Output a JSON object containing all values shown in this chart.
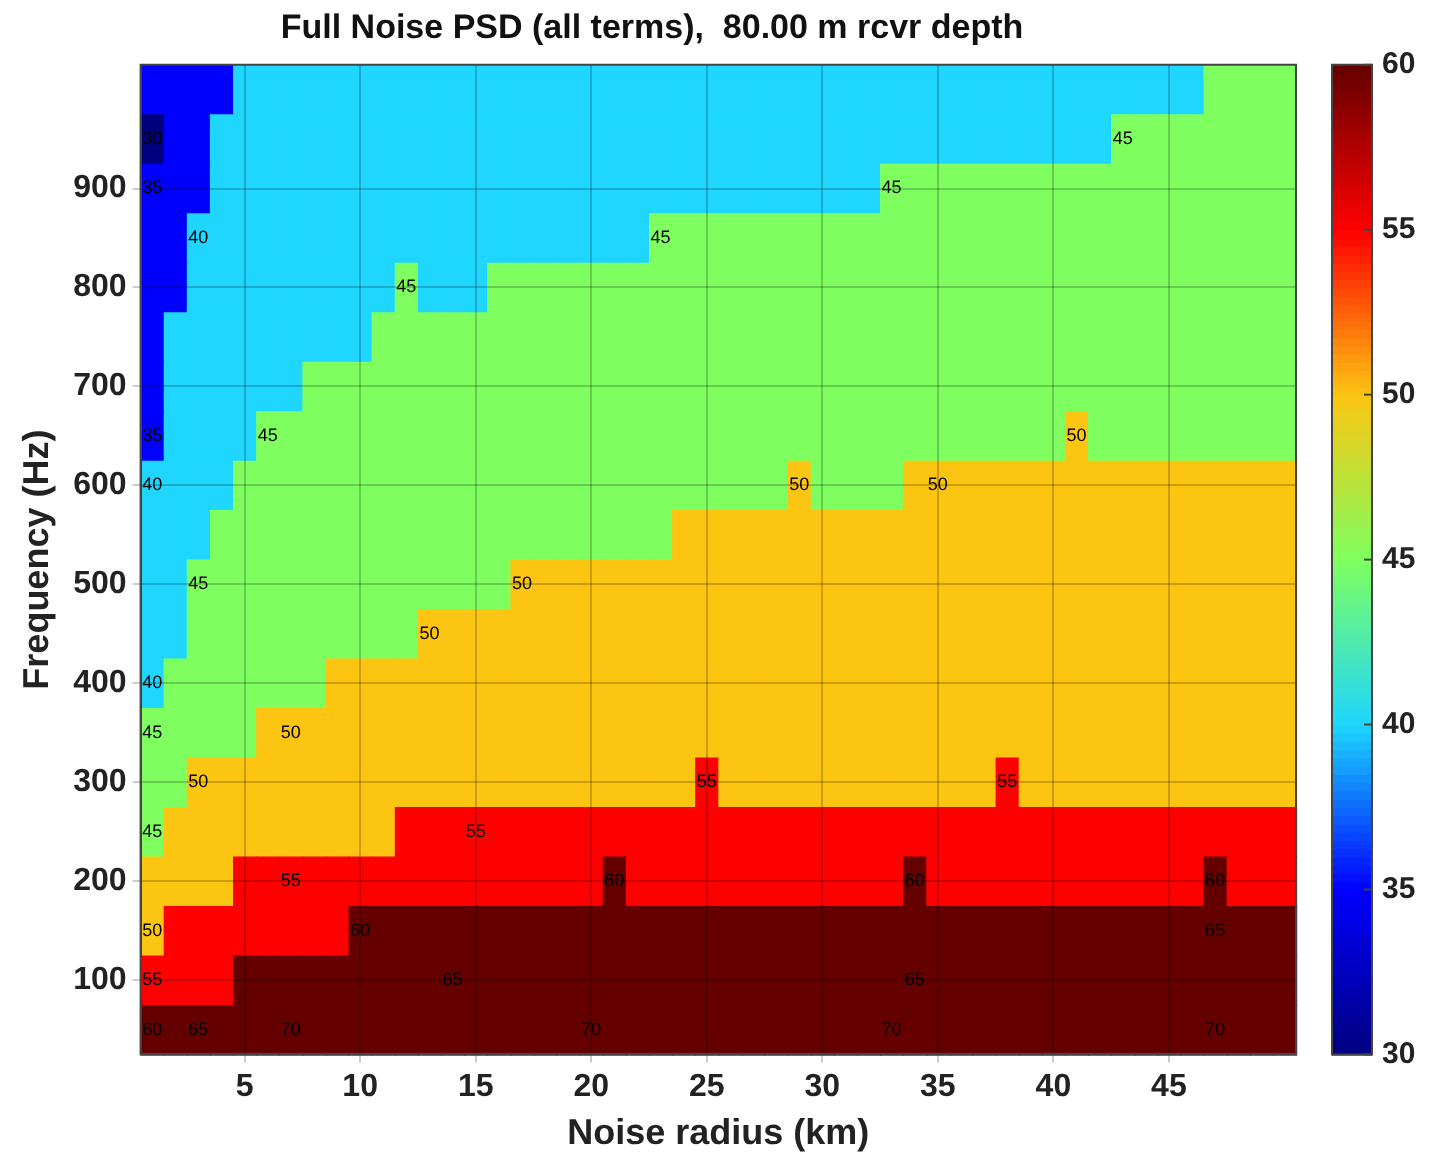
{
  "chart_data": {
    "type": "heatmap",
    "title": "Full Noise PSD (all terms),  80.00 m rcvr depth",
    "xlabel": "Noise radius (km)",
    "ylabel": "Frequency (Hz)",
    "categories": [
      null,
      null,
      null,
      null,
      "5",
      null,
      null,
      null,
      null,
      "10",
      null,
      null,
      null,
      null,
      "15",
      null,
      null,
      null,
      null,
      "20",
      null,
      null,
      null,
      null,
      "25",
      null,
      null,
      null,
      null,
      "30",
      null,
      null,
      null,
      null,
      "35",
      null,
      null,
      null,
      null,
      "40",
      null,
      null,
      null,
      null,
      "45",
      null,
      null,
      null,
      null,
      null
    ],
    "y_categories": [
      null,
      null,
      "900",
      null,
      "800",
      null,
      "700",
      null,
      "600",
      null,
      "500",
      null,
      "400",
      null,
      "300",
      null,
      "200",
      null,
      "100",
      null
    ],
    "clim": [
      30,
      60
    ],
    "cticks": [
      30,
      35,
      40,
      45,
      50,
      55,
      60
    ],
    "grid": true,
    "cells": [
      [
        35,
        35,
        35,
        35,
        40,
        40,
        40,
        40,
        40,
        40,
        40,
        40,
        40,
        40,
        40,
        40,
        40,
        40,
        40,
        40,
        40,
        40,
        40,
        40,
        40,
        40,
        40,
        40,
        40,
        40,
        40,
        40,
        40,
        40,
        40,
        40,
        40,
        40,
        40,
        40,
        40,
        40,
        40,
        40,
        40,
        40,
        45,
        45,
        45,
        45
      ],
      [
        30,
        35,
        35,
        40,
        40,
        40,
        40,
        40,
        40,
        40,
        40,
        40,
        40,
        40,
        40,
        40,
        40,
        40,
        40,
        40,
        40,
        40,
        40,
        40,
        40,
        40,
        40,
        40,
        40,
        40,
        40,
        40,
        40,
        40,
        40,
        40,
        40,
        40,
        40,
        40,
        40,
        40,
        45,
        45,
        45,
        45,
        45,
        45,
        45,
        45
      ],
      [
        35,
        35,
        35,
        40,
        40,
        40,
        40,
        40,
        40,
        40,
        40,
        40,
        40,
        40,
        40,
        40,
        40,
        40,
        40,
        40,
        40,
        40,
        40,
        40,
        40,
        40,
        40,
        40,
        40,
        40,
        40,
        40,
        45,
        45,
        45,
        45,
        45,
        45,
        45,
        45,
        45,
        45,
        45,
        45,
        45,
        45,
        45,
        45,
        45,
        45
      ],
      [
        35,
        35,
        40,
        40,
        40,
        40,
        40,
        40,
        40,
        40,
        40,
        40,
        40,
        40,
        40,
        40,
        40,
        40,
        40,
        40,
        40,
        40,
        45,
        45,
        45,
        45,
        45,
        45,
        45,
        45,
        45,
        45,
        45,
        45,
        45,
        45,
        45,
        45,
        45,
        45,
        45,
        45,
        45,
        45,
        45,
        45,
        45,
        45,
        45,
        45
      ],
      [
        35,
        35,
        40,
        40,
        40,
        40,
        40,
        40,
        40,
        40,
        40,
        45,
        40,
        40,
        40,
        45,
        45,
        45,
        45,
        45,
        45,
        45,
        45,
        45,
        45,
        45,
        45,
        45,
        45,
        45,
        45,
        45,
        45,
        45,
        45,
        45,
        45,
        45,
        45,
        45,
        45,
        45,
        45,
        45,
        45,
        45,
        45,
        45,
        45,
        45
      ],
      [
        35,
        40,
        40,
        40,
        40,
        40,
        40,
        40,
        40,
        40,
        45,
        45,
        45,
        45,
        45,
        45,
        45,
        45,
        45,
        45,
        45,
        45,
        45,
        45,
        45,
        45,
        45,
        45,
        45,
        45,
        45,
        45,
        45,
        45,
        45,
        45,
        45,
        45,
        45,
        45,
        45,
        45,
        45,
        45,
        45,
        45,
        45,
        45,
        45,
        45
      ],
      [
        35,
        40,
        40,
        40,
        40,
        40,
        40,
        45,
        45,
        45,
        45,
        45,
        45,
        45,
        45,
        45,
        45,
        45,
        45,
        45,
        45,
        45,
        45,
        45,
        45,
        45,
        45,
        45,
        45,
        45,
        45,
        45,
        45,
        45,
        45,
        45,
        45,
        45,
        45,
        45,
        45,
        45,
        45,
        45,
        45,
        45,
        45,
        45,
        45,
        45
      ],
      [
        35,
        40,
        40,
        40,
        40,
        45,
        45,
        45,
        45,
        45,
        45,
        45,
        45,
        45,
        45,
        45,
        45,
        45,
        45,
        45,
        45,
        45,
        45,
        45,
        45,
        45,
        45,
        45,
        45,
        45,
        45,
        45,
        45,
        45,
        45,
        45,
        45,
        45,
        45,
        45,
        50,
        45,
        45,
        45,
        45,
        45,
        45,
        45,
        45,
        45
      ],
      [
        40,
        40,
        40,
        40,
        45,
        45,
        45,
        45,
        45,
        45,
        45,
        45,
        45,
        45,
        45,
        45,
        45,
        45,
        45,
        45,
        45,
        45,
        45,
        45,
        45,
        45,
        45,
        45,
        50,
        45,
        45,
        45,
        45,
        50,
        50,
        50,
        50,
        50,
        50,
        50,
        50,
        50,
        50,
        50,
        50,
        50,
        50,
        50,
        50,
        50
      ],
      [
        40,
        40,
        40,
        45,
        45,
        45,
        45,
        45,
        45,
        45,
        45,
        45,
        45,
        45,
        45,
        45,
        45,
        45,
        45,
        45,
        45,
        45,
        45,
        50,
        50,
        50,
        50,
        50,
        50,
        50,
        50,
        50,
        50,
        50,
        50,
        50,
        50,
        50,
        50,
        50,
        50,
        50,
        50,
        50,
        50,
        50,
        50,
        50,
        50,
        50
      ],
      [
        40,
        40,
        45,
        45,
        45,
        45,
        45,
        45,
        45,
        45,
        45,
        45,
        45,
        45,
        45,
        45,
        50,
        50,
        50,
        50,
        50,
        50,
        50,
        50,
        50,
        50,
        50,
        50,
        50,
        50,
        50,
        50,
        50,
        50,
        50,
        50,
        50,
        50,
        50,
        50,
        50,
        50,
        50,
        50,
        50,
        50,
        50,
        50,
        50,
        50
      ],
      [
        40,
        40,
        45,
        45,
        45,
        45,
        45,
        45,
        45,
        45,
        45,
        45,
        50,
        50,
        50,
        50,
        50,
        50,
        50,
        50,
        50,
        50,
        50,
        50,
        50,
        50,
        50,
        50,
        50,
        50,
        50,
        50,
        50,
        50,
        50,
        50,
        50,
        50,
        50,
        50,
        50,
        50,
        50,
        50,
        50,
        50,
        50,
        50,
        50,
        50
      ],
      [
        40,
        45,
        45,
        45,
        45,
        45,
        45,
        45,
        50,
        50,
        50,
        50,
        50,
        50,
        50,
        50,
        50,
        50,
        50,
        50,
        50,
        50,
        50,
        50,
        50,
        50,
        50,
        50,
        50,
        50,
        50,
        50,
        50,
        50,
        50,
        50,
        50,
        50,
        50,
        50,
        50,
        50,
        50,
        50,
        50,
        50,
        50,
        50,
        50,
        50
      ],
      [
        45,
        45,
        45,
        45,
        45,
        50,
        50,
        50,
        50,
        50,
        50,
        50,
        50,
        50,
        50,
        50,
        50,
        50,
        50,
        50,
        50,
        50,
        50,
        50,
        50,
        50,
        50,
        50,
        50,
        50,
        50,
        50,
        50,
        50,
        50,
        50,
        50,
        50,
        50,
        50,
        50,
        50,
        50,
        50,
        50,
        50,
        50,
        50,
        50,
        50
      ],
      [
        45,
        45,
        50,
        50,
        50,
        50,
        50,
        50,
        50,
        50,
        50,
        50,
        50,
        50,
        50,
        50,
        50,
        50,
        50,
        50,
        50,
        50,
        50,
        50,
        55,
        50,
        50,
        50,
        50,
        50,
        50,
        50,
        50,
        50,
        50,
        50,
        50,
        55,
        50,
        50,
        50,
        50,
        50,
        50,
        50,
        50,
        50,
        50,
        50,
        50
      ],
      [
        45,
        50,
        50,
        50,
        50,
        50,
        50,
        50,
        50,
        50,
        50,
        55,
        55,
        55,
        55,
        55,
        55,
        55,
        55,
        55,
        55,
        55,
        55,
        55,
        55,
        55,
        55,
        55,
        55,
        55,
        55,
        55,
        55,
        55,
        55,
        55,
        55,
        55,
        55,
        55,
        55,
        55,
        55,
        55,
        55,
        55,
        55,
        55,
        55,
        55
      ],
      [
        50,
        50,
        50,
        50,
        55,
        55,
        55,
        55,
        55,
        55,
        55,
        55,
        55,
        55,
        55,
        55,
        55,
        55,
        55,
        55,
        60,
        55,
        55,
        55,
        55,
        55,
        55,
        55,
        55,
        55,
        55,
        55,
        55,
        60,
        55,
        55,
        55,
        55,
        55,
        55,
        55,
        55,
        55,
        55,
        55,
        55,
        60,
        55,
        55,
        55
      ],
      [
        50,
        55,
        55,
        55,
        55,
        55,
        55,
        55,
        55,
        60,
        60,
        60,
        60,
        60,
        60,
        60,
        60,
        60,
        60,
        60,
        60,
        60,
        60,
        60,
        60,
        60,
        60,
        60,
        60,
        60,
        60,
        60,
        60,
        60,
        60,
        60,
        60,
        60,
        60,
        60,
        60,
        60,
        60,
        60,
        60,
        60,
        65,
        60,
        60,
        60
      ],
      [
        55,
        55,
        55,
        55,
        60,
        60,
        60,
        60,
        60,
        60,
        60,
        60,
        60,
        65,
        60,
        60,
        60,
        60,
        60,
        60,
        60,
        60,
        60,
        60,
        60,
        60,
        60,
        60,
        60,
        60,
        60,
        60,
        60,
        65,
        60,
        60,
        60,
        60,
        60,
        60,
        60,
        60,
        60,
        60,
        60,
        60,
        60,
        60,
        60,
        60
      ],
      [
        60,
        60,
        65,
        60,
        60,
        60,
        70,
        60,
        60,
        60,
        60,
        60,
        60,
        60,
        60,
        60,
        60,
        60,
        60,
        70,
        60,
        60,
        60,
        60,
        60,
        60,
        60,
        60,
        60,
        60,
        60,
        60,
        70,
        60,
        60,
        60,
        60,
        60,
        60,
        60,
        60,
        60,
        60,
        60,
        60,
        60,
        70,
        60,
        60,
        60
      ]
    ],
    "cell_labels": [
      [
        null,
        null,
        null,
        null,
        null,
        null,
        null,
        null,
        null,
        null,
        null,
        null,
        null,
        null,
        null,
        null,
        null,
        null,
        null,
        null,
        null,
        null,
        null,
        null,
        null,
        null,
        null,
        null,
        null,
        null,
        null,
        null,
        null,
        null,
        null,
        null,
        null,
        null,
        null,
        null,
        null,
        null,
        null,
        null,
        null,
        null,
        null,
        null,
        null,
        null
      ],
      [
        "30",
        null,
        null,
        null,
        null,
        null,
        null,
        null,
        null,
        null,
        null,
        null,
        null,
        null,
        null,
        null,
        null,
        null,
        null,
        null,
        null,
        null,
        null,
        null,
        null,
        null,
        null,
        null,
        null,
        null,
        null,
        null,
        null,
        null,
        null,
        null,
        null,
        null,
        null,
        null,
        null,
        null,
        "45",
        null,
        null,
        null,
        null,
        null,
        null,
        null
      ],
      [
        "35",
        null,
        null,
        null,
        null,
        null,
        null,
        null,
        null,
        null,
        null,
        null,
        null,
        null,
        null,
        null,
        null,
        null,
        null,
        null,
        null,
        null,
        null,
        null,
        null,
        null,
        null,
        null,
        null,
        null,
        null,
        null,
        "45",
        null,
        null,
        null,
        null,
        null,
        null,
        null,
        null,
        null,
        null,
        null,
        null,
        null,
        null,
        null,
        null,
        null
      ],
      [
        null,
        null,
        "40",
        null,
        null,
        null,
        null,
        null,
        null,
        null,
        null,
        null,
        null,
        null,
        null,
        null,
        null,
        null,
        null,
        null,
        null,
        null,
        "45",
        null,
        null,
        null,
        null,
        null,
        null,
        null,
        null,
        null,
        null,
        null,
        null,
        null,
        null,
        null,
        null,
        null,
        null,
        null,
        null,
        null,
        null,
        null,
        null,
        null,
        null,
        null
      ],
      [
        null,
        null,
        null,
        null,
        null,
        null,
        null,
        null,
        null,
        null,
        null,
        "45",
        null,
        null,
        null,
        null,
        null,
        null,
        null,
        null,
        null,
        null,
        null,
        null,
        null,
        null,
        null,
        null,
        null,
        null,
        null,
        null,
        null,
        null,
        null,
        null,
        null,
        null,
        null,
        null,
        null,
        null,
        null,
        null,
        null,
        null,
        null,
        null,
        null,
        null
      ],
      [
        null,
        null,
        null,
        null,
        null,
        null,
        null,
        null,
        null,
        null,
        null,
        null,
        null,
        null,
        null,
        null,
        null,
        null,
        null,
        null,
        null,
        null,
        null,
        null,
        null,
        null,
        null,
        null,
        null,
        null,
        null,
        null,
        null,
        null,
        null,
        null,
        null,
        null,
        null,
        null,
        null,
        null,
        null,
        null,
        null,
        null,
        null,
        null,
        null,
        null
      ],
      [
        null,
        null,
        null,
        null,
        null,
        null,
        null,
        null,
        null,
        null,
        null,
        null,
        null,
        null,
        null,
        null,
        null,
        null,
        null,
        null,
        null,
        null,
        null,
        null,
        null,
        null,
        null,
        null,
        null,
        null,
        null,
        null,
        null,
        null,
        null,
        null,
        null,
        null,
        null,
        null,
        null,
        null,
        null,
        null,
        null,
        null,
        null,
        null,
        null,
        null
      ],
      [
        "35",
        null,
        null,
        null,
        null,
        "45",
        null,
        null,
        null,
        null,
        null,
        null,
        null,
        null,
        null,
        null,
        null,
        null,
        null,
        null,
        null,
        null,
        null,
        null,
        null,
        null,
        null,
        null,
        null,
        null,
        null,
        null,
        null,
        null,
        null,
        null,
        null,
        null,
        null,
        null,
        "50",
        null,
        null,
        null,
        null,
        null,
        null,
        null,
        null,
        null
      ],
      [
        "40",
        null,
        null,
        null,
        null,
        null,
        null,
        null,
        null,
        null,
        null,
        null,
        null,
        null,
        null,
        null,
        null,
        null,
        null,
        null,
        null,
        null,
        null,
        null,
        null,
        null,
        null,
        null,
        "50",
        null,
        null,
        null,
        null,
        null,
        "50",
        null,
        null,
        null,
        null,
        null,
        null,
        null,
        null,
        null,
        null,
        null,
        null,
        null,
        null,
        null
      ],
      [
        null,
        null,
        null,
        null,
        null,
        null,
        null,
        null,
        null,
        null,
        null,
        null,
        null,
        null,
        null,
        null,
        null,
        null,
        null,
        null,
        null,
        null,
        null,
        null,
        null,
        null,
        null,
        null,
        null,
        null,
        null,
        null,
        null,
        null,
        null,
        null,
        null,
        null,
        null,
        null,
        null,
        null,
        null,
        null,
        null,
        null,
        null,
        null,
        null,
        null
      ],
      [
        null,
        null,
        "45",
        null,
        null,
        null,
        null,
        null,
        null,
        null,
        null,
        null,
        null,
        null,
        null,
        null,
        "50",
        null,
        null,
        null,
        null,
        null,
        null,
        null,
        null,
        null,
        null,
        null,
        null,
        null,
        null,
        null,
        null,
        null,
        null,
        null,
        null,
        null,
        null,
        null,
        null,
        null,
        null,
        null,
        null,
        null,
        null,
        null,
        null,
        null
      ],
      [
        null,
        null,
        null,
        null,
        null,
        null,
        null,
        null,
        null,
        null,
        null,
        null,
        "50",
        null,
        null,
        null,
        null,
        null,
        null,
        null,
        null,
        null,
        null,
        null,
        null,
        null,
        null,
        null,
        null,
        null,
        null,
        null,
        null,
        null,
        null,
        null,
        null,
        null,
        null,
        null,
        null,
        null,
        null,
        null,
        null,
        null,
        null,
        null,
        null,
        null
      ],
      [
        "40",
        null,
        null,
        null,
        null,
        null,
        null,
        null,
        null,
        null,
        null,
        null,
        null,
        null,
        null,
        null,
        null,
        null,
        null,
        null,
        null,
        null,
        null,
        null,
        null,
        null,
        null,
        null,
        null,
        null,
        null,
        null,
        null,
        null,
        null,
        null,
        null,
        null,
        null,
        null,
        null,
        null,
        null,
        null,
        null,
        null,
        null,
        null,
        null,
        null
      ],
      [
        "45",
        null,
        null,
        null,
        null,
        null,
        "50",
        null,
        null,
        null,
        null,
        null,
        null,
        null,
        null,
        null,
        null,
        null,
        null,
        null,
        null,
        null,
        null,
        null,
        null,
        null,
        null,
        null,
        null,
        null,
        null,
        null,
        null,
        null,
        null,
        null,
        null,
        null,
        null,
        null,
        null,
        null,
        null,
        null,
        null,
        null,
        null,
        null,
        null,
        null
      ],
      [
        null,
        null,
        "50",
        null,
        null,
        null,
        null,
        null,
        null,
        null,
        null,
        null,
        null,
        null,
        null,
        null,
        null,
        null,
        null,
        null,
        null,
        null,
        null,
        null,
        "55",
        null,
        null,
        null,
        null,
        null,
        null,
        null,
        null,
        null,
        null,
        null,
        null,
        "55",
        null,
        null,
        null,
        null,
        null,
        null,
        null,
        null,
        null,
        null,
        null,
        null
      ],
      [
        "45",
        null,
        null,
        null,
        null,
        null,
        null,
        null,
        null,
        null,
        null,
        null,
        null,
        null,
        "55",
        null,
        null,
        null,
        null,
        null,
        null,
        null,
        null,
        null,
        null,
        null,
        null,
        null,
        null,
        null,
        null,
        null,
        null,
        null,
        null,
        null,
        null,
        null,
        null,
        null,
        null,
        null,
        null,
        null,
        null,
        null,
        null,
        null,
        null,
        null
      ],
      [
        null,
        null,
        null,
        null,
        null,
        null,
        "55",
        null,
        null,
        null,
        null,
        null,
        null,
        null,
        null,
        null,
        null,
        null,
        null,
        null,
        "60",
        null,
        null,
        null,
        null,
        null,
        null,
        null,
        null,
        null,
        null,
        null,
        null,
        "60",
        null,
        null,
        null,
        null,
        null,
        null,
        null,
        null,
        null,
        null,
        null,
        null,
        "60",
        null,
        null,
        null
      ],
      [
        "50",
        null,
        null,
        null,
        null,
        null,
        null,
        null,
        null,
        "60",
        null,
        null,
        null,
        null,
        null,
        null,
        null,
        null,
        null,
        null,
        null,
        null,
        null,
        null,
        null,
        null,
        null,
        null,
        null,
        null,
        null,
        null,
        null,
        null,
        null,
        null,
        null,
        null,
        null,
        null,
        null,
        null,
        null,
        null,
        null,
        null,
        "65",
        null,
        null,
        null
      ],
      [
        "55",
        null,
        null,
        null,
        null,
        null,
        null,
        null,
        null,
        null,
        null,
        null,
        null,
        "65",
        null,
        null,
        null,
        null,
        null,
        null,
        null,
        null,
        null,
        null,
        null,
        null,
        null,
        null,
        null,
        null,
        null,
        null,
        null,
        "65",
        null,
        null,
        null,
        null,
        null,
        null,
        null,
        null,
        null,
        null,
        null,
        null,
        null,
        null,
        null,
        null
      ],
      [
        "60",
        null,
        "65",
        null,
        null,
        null,
        "70",
        null,
        null,
        null,
        null,
        null,
        null,
        null,
        null,
        null,
        null,
        null,
        null,
        "70",
        null,
        null,
        null,
        null,
        null,
        null,
        null,
        null,
        null,
        null,
        null,
        null,
        "70",
        null,
        null,
        null,
        null,
        null,
        null,
        null,
        null,
        null,
        null,
        null,
        null,
        null,
        "70",
        null,
        null,
        null
      ]
    ]
  }
}
